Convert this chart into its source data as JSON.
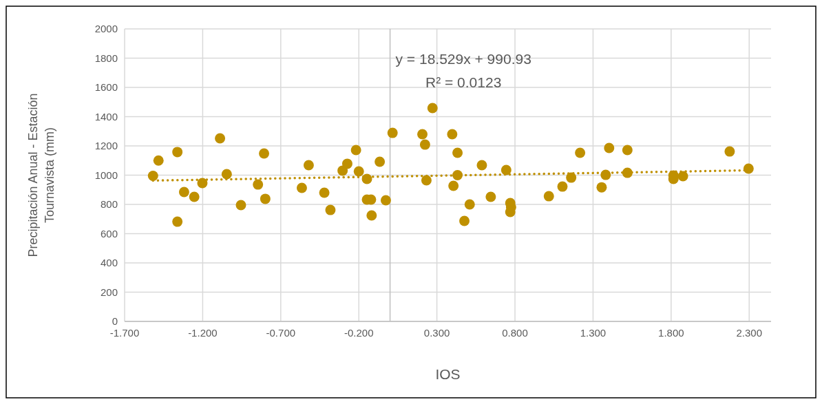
{
  "chart_data": {
    "type": "scatter",
    "xlabel": "IOS",
    "ylabel": "Precipitación Anual - Estación Tournavista (mm)",
    "xlim": [
      -1.7,
      2.44
    ],
    "xticks": [
      {
        "value": -1.7,
        "label": "-1.700"
      },
      {
        "value": -1.2,
        "label": "-1.200"
      },
      {
        "value": -0.7,
        "label": "-0.700"
      },
      {
        "value": -0.2,
        "label": "-0.200"
      },
      {
        "value": 0.3,
        "label": "0.300"
      },
      {
        "value": 0.8,
        "label": "0.800"
      },
      {
        "value": 1.3,
        "label": "1.300"
      },
      {
        "value": 1.8,
        "label": "1.800"
      },
      {
        "value": 2.3,
        "label": "2.300"
      }
    ],
    "ylim": [
      0,
      2000
    ],
    "yticks": [
      0,
      200,
      400,
      600,
      800,
      1000,
      1200,
      1400,
      1600,
      1800,
      2000
    ],
    "grid": true,
    "marker": "circle",
    "annotations": [
      "y = 18.529x + 990.93",
      "R² = 0.0123"
    ],
    "series": [
      {
        "color": "#bf9000",
        "x": [
          -1.518,
          -1.483,
          -1.362,
          -1.362,
          -1.319,
          -1.254,
          -1.202,
          -1.089,
          -1.046,
          -0.955,
          -0.846,
          -0.807,
          -0.799,
          -0.565,
          -0.521,
          -0.421,
          -0.382,
          -0.304,
          -0.274,
          -0.218,
          -0.2,
          -0.148,
          -0.148,
          -0.122,
          -0.118,
          -0.066,
          -0.027,
          0.016,
          0.207,
          0.224,
          0.233,
          0.272,
          0.398,
          0.406,
          0.432,
          0.432,
          0.476,
          0.51,
          0.588,
          0.645,
          0.744,
          0.77,
          0.775,
          0.77,
          1.017,
          1.104,
          1.16,
          1.217,
          1.355,
          1.381,
          1.403,
          1.52,
          1.52,
          1.815,
          1.815,
          1.876,
          2.175,
          2.296
        ],
        "values": [
          995,
          1100,
          1158,
          682,
          885,
          852,
          946,
          1252,
          1007,
          795,
          936,
          1148,
          838,
          913,
          1068,
          880,
          762,
          1031,
          1078,
          1172,
          1026,
          974,
          833,
          833,
          725,
          1092,
          828,
          1289,
          1280,
          1209,
          965,
          1459,
          1280,
          927,
          1153,
          1000,
          687,
          800,
          1068,
          852,
          1035,
          809,
          781,
          748,
          856,
          922,
          983,
          1153,
          917,
          1002,
          1186,
          1172,
          1016,
          998,
          974,
          993,
          1162,
          1045
        ]
      },
      {
        "type": "line",
        "color": "#bf9000",
        "line_style": "dotted",
        "marker": "none",
        "x": [
          -1.518,
          2.296
        ],
        "values": [
          963,
          1033
        ]
      }
    ]
  }
}
